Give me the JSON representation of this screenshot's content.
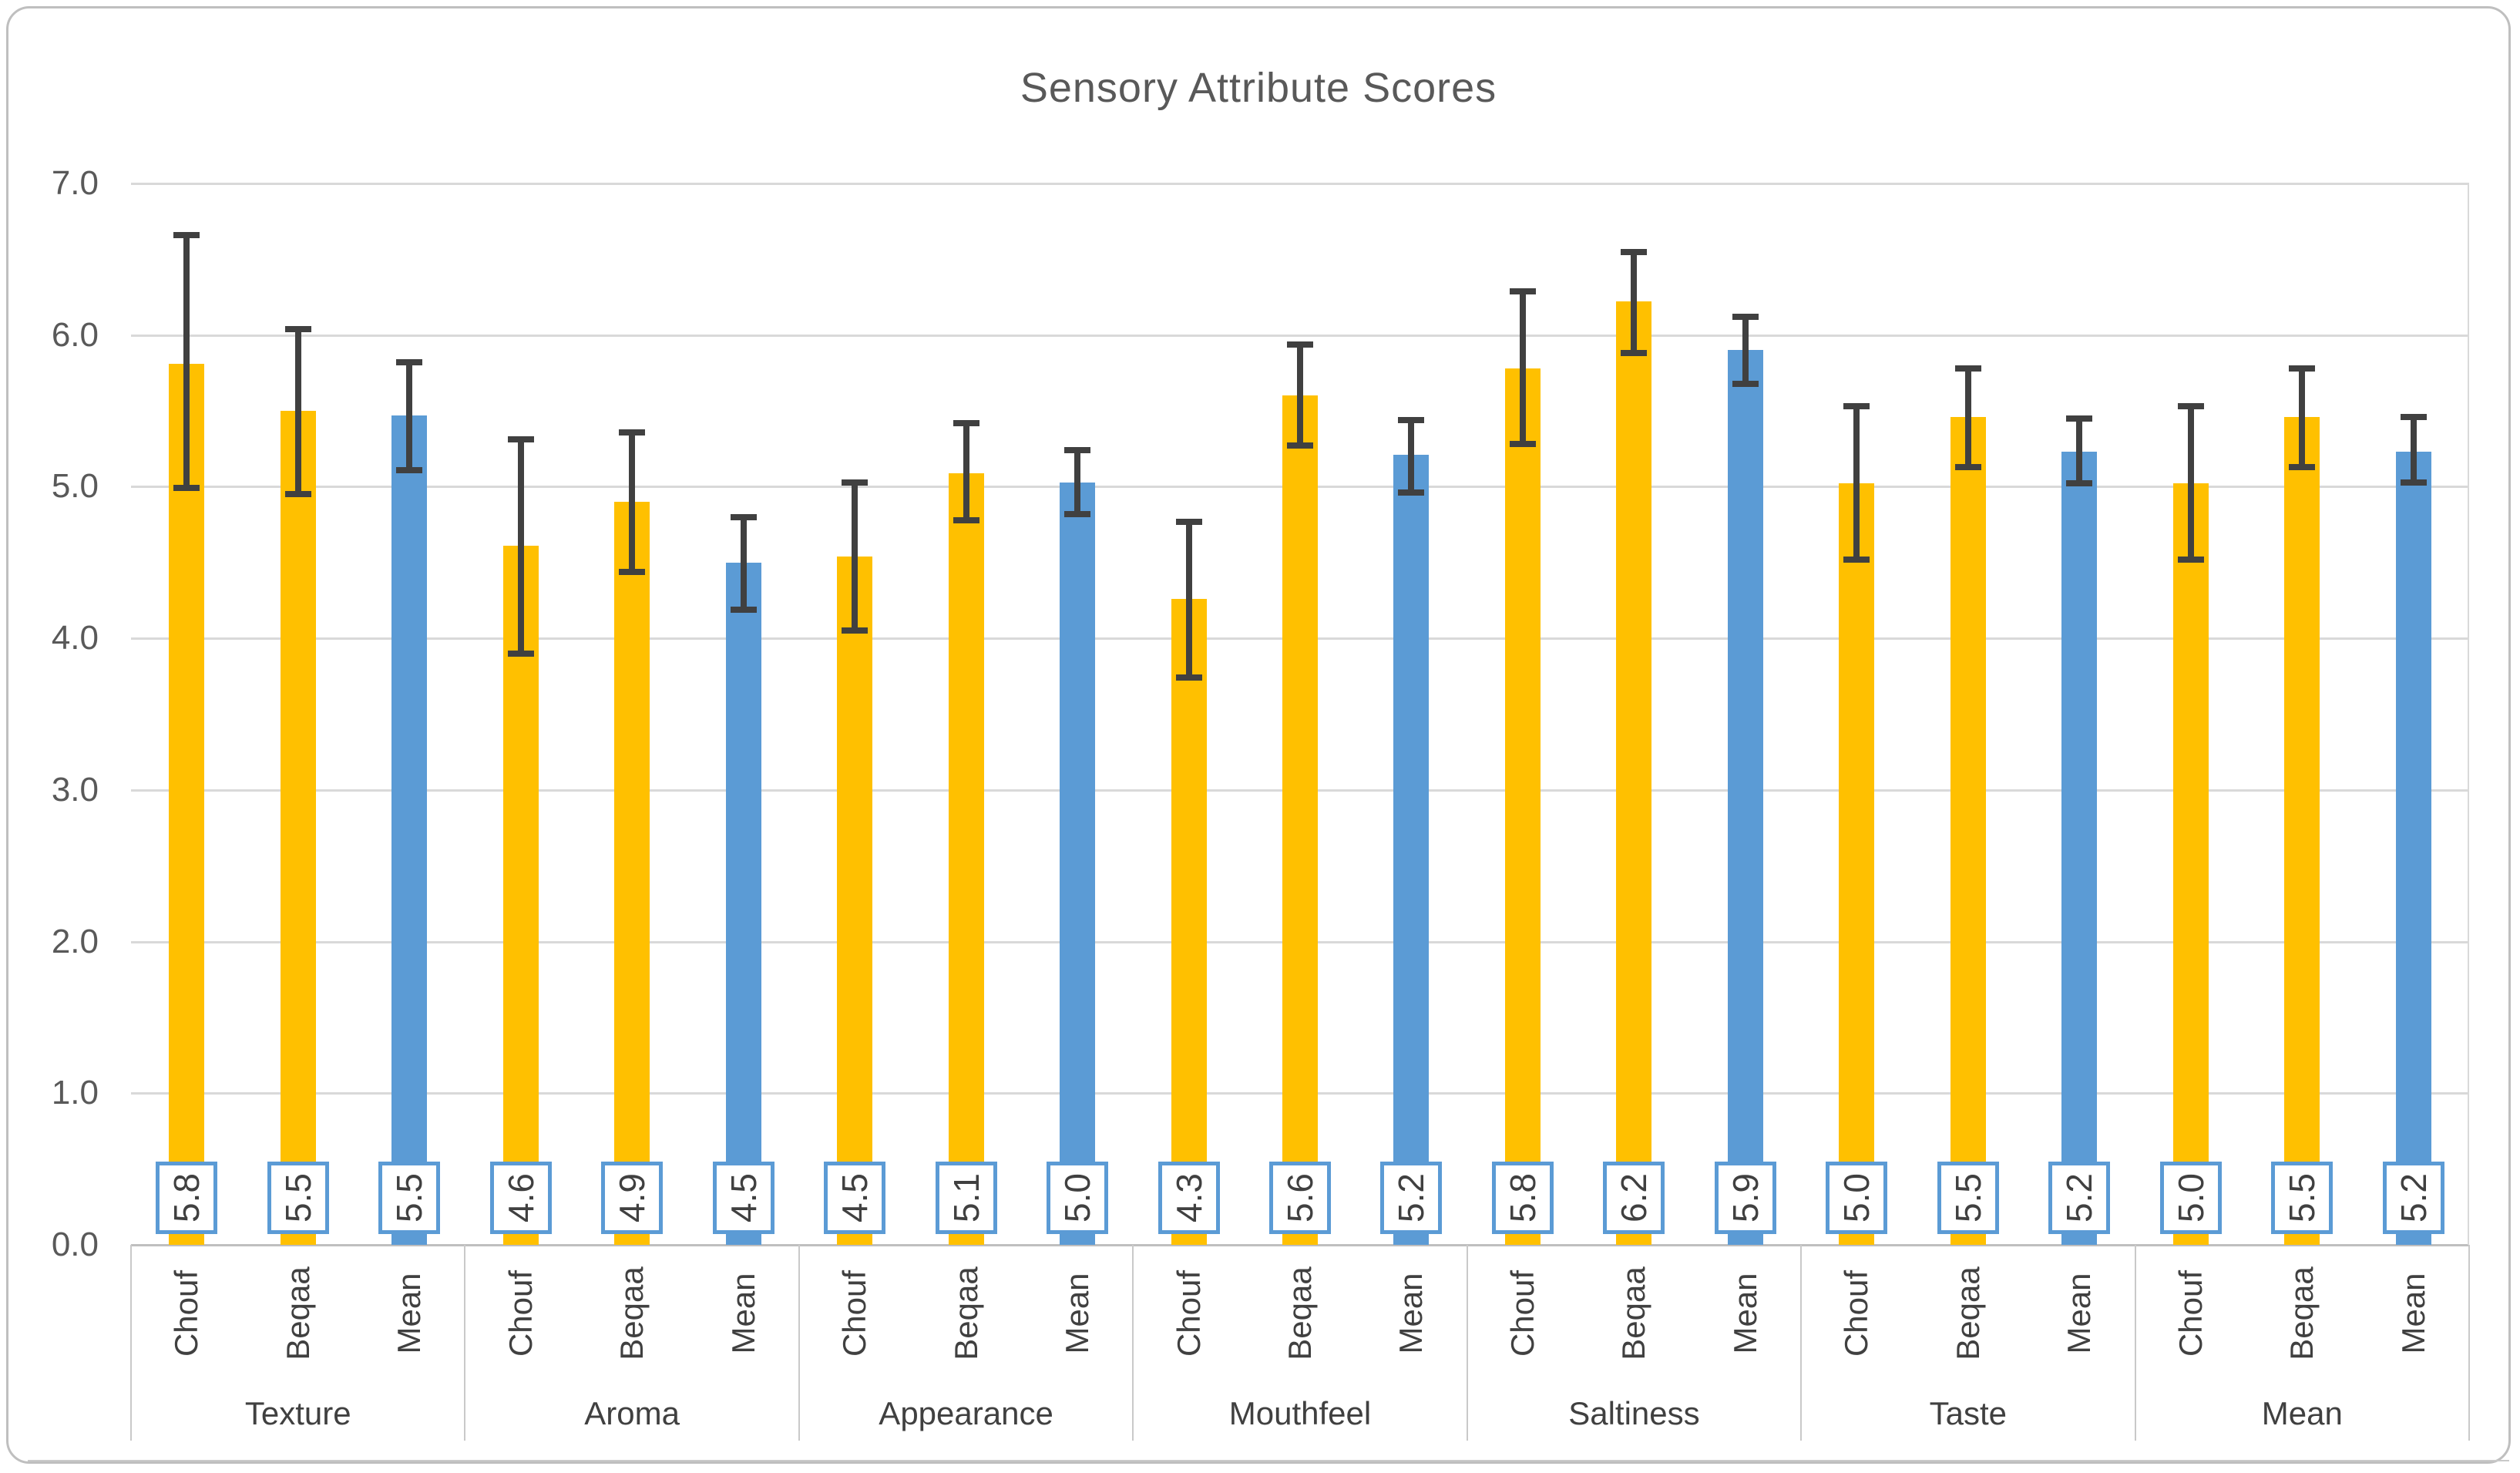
{
  "chart_data": {
    "type": "bar",
    "title": "Sensory Attribute Scores",
    "xlabel": "",
    "ylabel": "",
    "ylim": [
      0.0,
      7.0
    ],
    "ytick_labels": [
      "7.0",
      "6.0",
      "5.0",
      "4.0",
      "3.0",
      "2.0",
      "1.0",
      "0.0"
    ],
    "grid": true,
    "legend_position": "none",
    "categories": [
      "Texture",
      "Aroma",
      "Appearance",
      "Mouthfeel",
      "Saltiness",
      "Taste",
      "Mean"
    ],
    "sub_categories": [
      "Chouf",
      "Beqaa",
      "Mean"
    ],
    "series_colors": {
      "Chouf": "#FFC000",
      "Beqaa": "#FFC000",
      "Mean": "#5B9BD5"
    },
    "error_bars": true,
    "points": [
      {
        "group": "Texture",
        "series": "Chouf",
        "label": "5.8",
        "value": 5.81,
        "err_low": 4.99,
        "err_high": 6.66
      },
      {
        "group": "Texture",
        "series": "Beqaa",
        "label": "5.5",
        "value": 5.5,
        "err_low": 4.95,
        "err_high": 6.04
      },
      {
        "group": "Texture",
        "series": "Mean",
        "label": "5.5",
        "value": 5.47,
        "err_low": 5.11,
        "err_high": 5.82
      },
      {
        "group": "Aroma",
        "series": "Chouf",
        "label": "4.6",
        "value": 4.61,
        "err_low": 3.9,
        "err_high": 5.31
      },
      {
        "group": "Aroma",
        "series": "Beqaa",
        "label": "4.9",
        "value": 4.9,
        "err_low": 4.44,
        "err_high": 5.36
      },
      {
        "group": "Aroma",
        "series": "Mean",
        "label": "4.5",
        "value": 4.5,
        "err_low": 4.19,
        "err_high": 4.8
      },
      {
        "group": "Appearance",
        "series": "Chouf",
        "label": "4.5",
        "value": 4.54,
        "err_low": 4.05,
        "err_high": 5.03
      },
      {
        "group": "Appearance",
        "series": "Beqaa",
        "label": "5.1",
        "value": 5.09,
        "err_low": 4.78,
        "err_high": 5.42
      },
      {
        "group": "Appearance",
        "series": "Mean",
        "label": "5.0",
        "value": 5.03,
        "err_low": 4.82,
        "err_high": 5.24
      },
      {
        "group": "Mouthfeel",
        "series": "Chouf",
        "label": "4.3",
        "value": 4.26,
        "err_low": 3.74,
        "err_high": 4.77
      },
      {
        "group": "Mouthfeel",
        "series": "Beqaa",
        "label": "5.6",
        "value": 5.6,
        "err_low": 5.27,
        "err_high": 5.94
      },
      {
        "group": "Mouthfeel",
        "series": "Mean",
        "label": "5.2",
        "value": 5.21,
        "err_low": 4.96,
        "err_high": 5.44
      },
      {
        "group": "Saltiness",
        "series": "Chouf",
        "label": "5.8",
        "value": 5.78,
        "err_low": 5.28,
        "err_high": 6.29
      },
      {
        "group": "Saltiness",
        "series": "Beqaa",
        "label": "6.2",
        "value": 6.22,
        "err_low": 5.88,
        "err_high": 6.55
      },
      {
        "group": "Saltiness",
        "series": "Mean",
        "label": "5.9",
        "value": 5.9,
        "err_low": 5.68,
        "err_high": 6.12
      },
      {
        "group": "Taste",
        "series": "Chouf",
        "label": "5.0",
        "value": 5.02,
        "err_low": 4.52,
        "err_high": 5.53
      },
      {
        "group": "Taste",
        "series": "Beqaa",
        "label": "5.5",
        "value": 5.46,
        "err_low": 5.13,
        "err_high": 5.78
      },
      {
        "group": "Taste",
        "series": "Mean",
        "label": "5.2",
        "value": 5.23,
        "err_low": 5.02,
        "err_high": 5.45
      },
      {
        "group": "Mean",
        "series": "Chouf",
        "label": "5.0",
        "value": 5.02,
        "err_low": 4.52,
        "err_high": 5.53
      },
      {
        "group": "Mean",
        "series": "Beqaa",
        "label": "5.5",
        "value": 5.46,
        "err_low": 5.13,
        "err_high": 5.78
      },
      {
        "group": "Mean",
        "series": "Mean",
        "label": "5.2",
        "value": 5.23,
        "err_low": 5.03,
        "err_high": 5.46
      }
    ]
  },
  "colors": {
    "bar_yellow": "#FFC000",
    "bar_blue": "#5B9BD5",
    "error_bar": "#404040",
    "gridline": "#D9D9D9",
    "axis_line": "#BFBFBF",
    "table_line": "#C9C9C9",
    "title_text": "#595959",
    "tick_text": "#595959",
    "label_text": "#404040",
    "callout_border": "#5B9BD5",
    "callout_fill": "#FFFFFF"
  }
}
